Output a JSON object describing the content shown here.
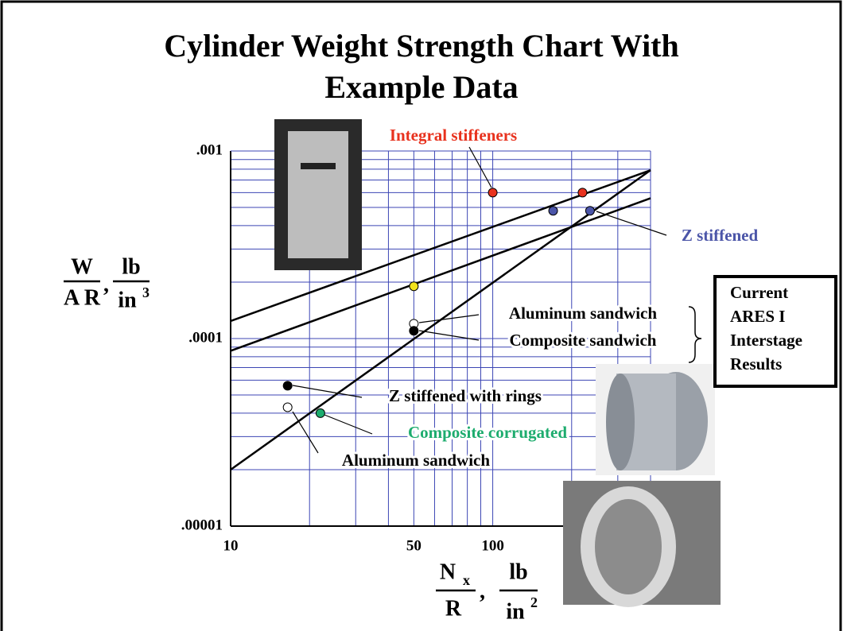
{
  "chart_data": {
    "type": "scatter",
    "title": [
      "Cylinder Weight Strength Chart With",
      "Example Data"
    ],
    "x_label": {
      "numerator": "N",
      "numerator_sub": "x",
      "denominator": "R",
      "unit_numerator": "lb",
      "unit_denominator": "in",
      "unit_exponent": "2"
    },
    "y_label": {
      "numerator": "W",
      "denominator": "A R",
      "unit_numerator": "lb",
      "unit_denominator": "in",
      "unit_exponent": "3"
    },
    "log_x": true,
    "log_y": true,
    "grid": true,
    "xlim": [
      10,
      400
    ],
    "ylim": [
      1e-05,
      0.001
    ],
    "xticks": [
      10,
      50,
      100
    ],
    "yticks": [
      {
        "value": 0.001,
        "label": ".001"
      },
      {
        "value": 0.0001,
        "label": ".0001"
      },
      {
        "value": 1e-05,
        "label": ".00001"
      }
    ],
    "x_minor_ticks": [
      20,
      30,
      40,
      60,
      70,
      80,
      90,
      200,
      300,
      400
    ],
    "y_minor_ticks": [
      2e-05,
      3e-05,
      4e-05,
      5e-05,
      6e-05,
      7e-05,
      8e-05,
      9e-05,
      0.0002,
      0.0003,
      0.0004,
      0.0005,
      0.0006,
      0.0007,
      0.0008,
      0.0009
    ],
    "fit_lines": [
      {
        "x": [
          10,
          400
        ],
        "values": [
          0.000124,
          0.00079
        ]
      },
      {
        "x": [
          10,
          400
        ],
        "values": [
          8.6e-05,
          0.00056
        ]
      },
      {
        "x": [
          10,
          400
        ],
        "values": [
          2e-05,
          0.00079
        ]
      }
    ],
    "points": [
      {
        "x": 100,
        "y": 0.0006,
        "color": "#e8321e"
      },
      {
        "x": 220,
        "y": 0.0006,
        "color": "#e8321e"
      },
      {
        "x": 170,
        "y": 0.00048,
        "color": "#4b55a8"
      },
      {
        "x": 235,
        "y": 0.00048,
        "color": "#4b55a8"
      },
      {
        "x": 50,
        "y": 0.00019,
        "color": "#f2e21c"
      },
      {
        "x": 50,
        "y": 0.00012,
        "color": "#ffffff"
      },
      {
        "x": 50,
        "y": 0.00011,
        "color": "#000000"
      },
      {
        "x": 16.5,
        "y": 5.6e-05,
        "color": "#000000"
      },
      {
        "x": 16.5,
        "y": 4.3e-05,
        "color": "#ffffff"
      },
      {
        "x": 22,
        "y": 4e-05,
        "color": "#1dac6e"
      }
    ],
    "annotations": [
      {
        "text": "Integral stiffeners",
        "color": "#e8321e"
      },
      {
        "text": "Z stiffened",
        "color": "#4b55a8"
      },
      {
        "text": "Aluminum sandwich",
        "color": "#000000"
      },
      {
        "text": "Composite sandwich",
        "color": "#000000"
      },
      {
        "text": "Z stiffened with rings",
        "color": "#000000"
      },
      {
        "text": "Composite corrugated",
        "color": "#1dac6e"
      },
      {
        "text": "Aluminum sandwich",
        "color": "#000000"
      }
    ],
    "box_text": [
      "Current",
      "ARES I",
      "Interstage",
      "Results"
    ]
  }
}
